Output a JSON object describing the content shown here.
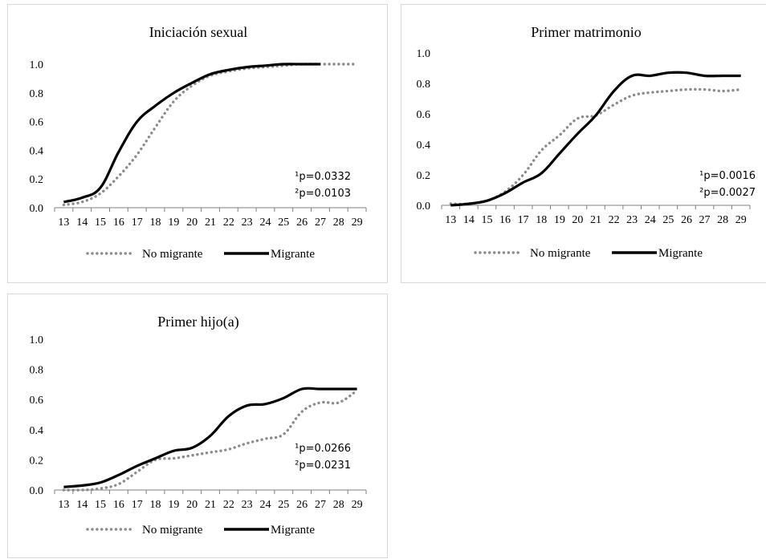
{
  "chart_data": [
    {
      "type": "line",
      "title": "Iniciación sexual",
      "xlabel": "",
      "ylabel": "",
      "ylim": [
        0,
        1
      ],
      "yticks": [
        "0.0",
        "0.2",
        "0.4",
        "0.6",
        "0.8",
        "1.0"
      ],
      "categories": [
        "13",
        "14",
        "15",
        "16",
        "17",
        "18",
        "19",
        "20",
        "21",
        "22",
        "23",
        "24",
        "25",
        "26",
        "27",
        "28",
        "29"
      ],
      "series": [
        {
          "name": "No migrante",
          "color": "#8c8c8c",
          "style": "dotted",
          "values": [
            0.02,
            0.04,
            0.1,
            0.22,
            0.37,
            0.56,
            0.74,
            0.85,
            0.92,
            0.95,
            0.97,
            0.98,
            0.99,
            1.0,
            1.0,
            1.0,
            1.0
          ]
        },
        {
          "name": "Migrante",
          "color": "#000000",
          "style": "solid",
          "values": [
            0.04,
            0.07,
            0.14,
            0.39,
            0.6,
            0.71,
            0.8,
            0.87,
            0.93,
            0.96,
            0.98,
            0.99,
            1.0,
            1.0,
            1.0,
            null,
            null
          ]
        }
      ],
      "annotations": [
        "¹p=0.0332",
        "²p=0.0103"
      ],
      "legend": "bottom"
    },
    {
      "type": "line",
      "title": "Primer matrimonio",
      "xlabel": "",
      "ylabel": "",
      "ylim": [
        0,
        1
      ],
      "yticks": [
        "0.0",
        "0.2",
        "0.4",
        "0.6",
        "0.8",
        "1.0"
      ],
      "categories": [
        "13",
        "14",
        "15",
        "16",
        "17",
        "18",
        "19",
        "20",
        "21",
        "22",
        "23",
        "24",
        "25",
        "26",
        "27",
        "28",
        "29"
      ],
      "series": [
        {
          "name": "No migrante",
          "color": "#8c8c8c",
          "style": "dotted",
          "values": [
            0.01,
            0.01,
            0.03,
            0.09,
            0.2,
            0.36,
            0.46,
            0.57,
            0.59,
            0.66,
            0.72,
            0.74,
            0.75,
            0.76,
            0.76,
            0.75,
            0.76
          ]
        },
        {
          "name": "Migrante",
          "color": "#000000",
          "style": "solid",
          "values": [
            0.0,
            0.01,
            0.03,
            0.08,
            0.15,
            0.21,
            0.34,
            0.47,
            0.59,
            0.75,
            0.85,
            0.85,
            0.87,
            0.87,
            0.85,
            0.85,
            0.85
          ]
        }
      ],
      "annotations": [
        "¹p=0.0016",
        "²p=0.0027"
      ],
      "legend": "bottom"
    },
    {
      "type": "line",
      "title": "Primer hijo(a)",
      "xlabel": "",
      "ylabel": "",
      "ylim": [
        0,
        1
      ],
      "yticks": [
        "0.0",
        "0.2",
        "0.4",
        "0.6",
        "0.8",
        "1.0"
      ],
      "categories": [
        "13",
        "14",
        "15",
        "16",
        "17",
        "18",
        "19",
        "20",
        "21",
        "22",
        "23",
        "24",
        "25",
        "26",
        "27",
        "28",
        "29"
      ],
      "series": [
        {
          "name": "No migrante",
          "color": "#8c8c8c",
          "style": "dotted",
          "values": [
            0.0,
            0.0,
            0.01,
            0.04,
            0.12,
            0.2,
            0.21,
            0.23,
            0.25,
            0.27,
            0.31,
            0.34,
            0.37,
            0.52,
            0.58,
            0.58,
            0.66
          ]
        },
        {
          "name": "Migrante",
          "color": "#000000",
          "style": "solid",
          "values": [
            0.02,
            0.03,
            0.05,
            0.1,
            0.16,
            0.21,
            0.26,
            0.28,
            0.36,
            0.49,
            0.56,
            0.57,
            0.61,
            0.67,
            0.67,
            0.67,
            0.67
          ]
        }
      ],
      "annotations": [
        "¹p=0.0266",
        "²p=0.0231"
      ],
      "legend": "bottom"
    }
  ]
}
